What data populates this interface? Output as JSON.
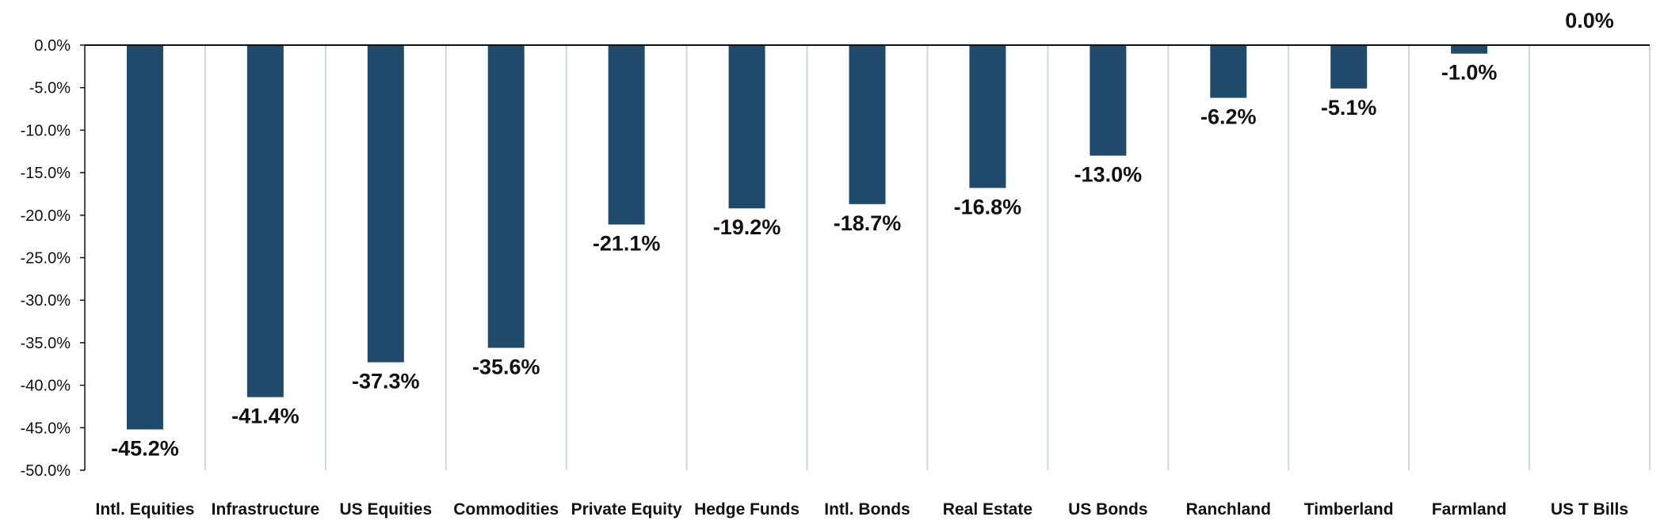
{
  "chart_data": {
    "type": "bar",
    "categories": [
      "Intl. Equities",
      "Infrastructure",
      "US Equities",
      "Commodities",
      "Private Equity",
      "Hedge Funds",
      "Intl. Bonds",
      "Real Estate",
      "US Bonds",
      "Ranchland",
      "Timberland",
      "Farmland",
      "US T Bills"
    ],
    "values": [
      -45.2,
      -41.4,
      -37.3,
      -35.6,
      -21.1,
      -19.2,
      -18.7,
      -16.8,
      -13.0,
      -6.2,
      -5.1,
      -1.0,
      0.0
    ],
    "data_labels": [
      "-45.2%",
      "-41.4%",
      "-37.3%",
      "-35.6%",
      "-21.1%",
      "-19.2%",
      "-18.7%",
      "-16.8%",
      "-13.0%",
      "-6.2%",
      "-5.1%",
      "-1.0%",
      "0.0%"
    ],
    "y_ticks": [
      0,
      -5,
      -10,
      -15,
      -20,
      -25,
      -30,
      -35,
      -40,
      -45,
      -50
    ],
    "y_tick_labels": [
      "0.0%",
      "-5.0%",
      "-10.0%",
      "-15.0%",
      "-20.0%",
      "-25.0%",
      "-30.0%",
      "-35.0%",
      "-40.0%",
      "-45.0%",
      "-50.0%"
    ],
    "ylim": [
      -50,
      0
    ],
    "title": "",
    "xlabel": "",
    "ylabel": "",
    "grid": "vertical category separators",
    "legend": "none",
    "colors": {
      "bar": "#1f4a6b",
      "axis": "#111111",
      "separator": "#c9d6e3",
      "text": "#111111"
    }
  }
}
